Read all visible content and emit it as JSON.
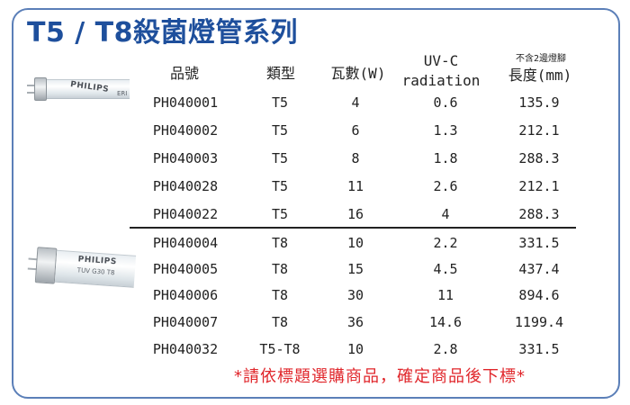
{
  "title": "T5 / T8殺菌燈管系列",
  "lamps": {
    "t5": {
      "brand": "PHILIPS",
      "subtext": "ERI"
    },
    "t8": {
      "brand": "PHILIPS",
      "subtext": "TUV G30 T8"
    }
  },
  "table": {
    "headers": {
      "product_no": "品號",
      "type": "類型",
      "watt": "瓦數(W)",
      "uvc_line1": "UV-C",
      "uvc_line2": "radiation",
      "length_note": "不含2邊燈腳",
      "length": "長度(mm)"
    },
    "rows": [
      {
        "product_no": "PH040001",
        "type": "T5",
        "watt": "4",
        "uvc": "0.6",
        "length": "135.9"
      },
      {
        "product_no": "PH040002",
        "type": "T5",
        "watt": "6",
        "uvc": "1.3",
        "length": "212.1"
      },
      {
        "product_no": "PH040003",
        "type": "T5",
        "watt": "8",
        "uvc": "1.8",
        "length": "288.3"
      },
      {
        "product_no": "PH040028",
        "type": "T5",
        "watt": "11",
        "uvc": "2.6",
        "length": "212.1"
      },
      {
        "product_no": "PH040022",
        "type": "T5",
        "watt": "16",
        "uvc": "4",
        "length": "288.3"
      },
      {
        "product_no": "PH040004",
        "type": "T8",
        "watt": "10",
        "uvc": "2.2",
        "length": "331.5"
      },
      {
        "product_no": "PH040005",
        "type": "T8",
        "watt": "15",
        "uvc": "4.5",
        "length": "437.4"
      },
      {
        "product_no": "PH040006",
        "type": "T8",
        "watt": "30",
        "uvc": "11",
        "length": "894.6"
      },
      {
        "product_no": "PH040007",
        "type": "T8",
        "watt": "36",
        "uvc": "14.6",
        "length": "1199.4"
      },
      {
        "product_no": "PH040032",
        "type": "T5-T8",
        "watt": "10",
        "uvc": "2.8",
        "length": "331.5"
      }
    ]
  },
  "footer_note": "*請依標題選購商品，確定商品後下標*",
  "colors": {
    "title": "#1e4f9c",
    "frame": "#5b7fb8",
    "note": "#e0262b"
  }
}
